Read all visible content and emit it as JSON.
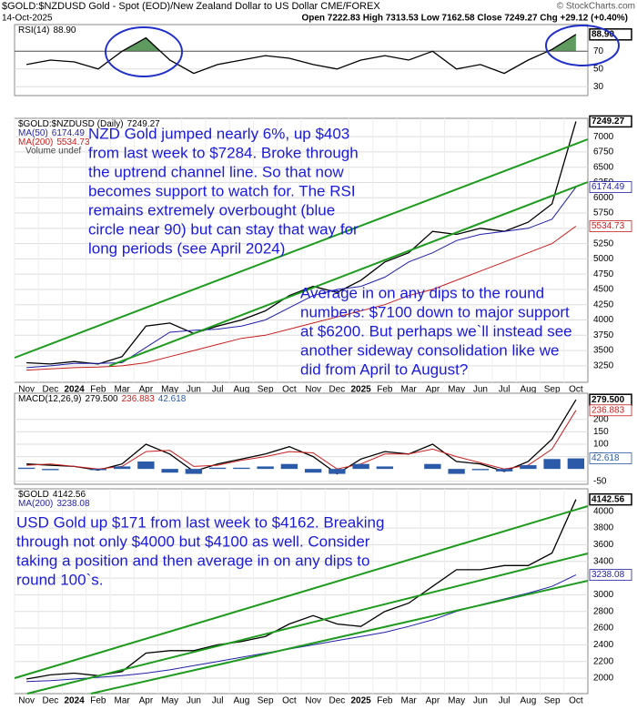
{
  "header": {
    "symbol_title": "$GOLD:$NZDUSD Gold - Spot (EOD)/New Zealand Dollar to US Dollar CME/FOREX",
    "credit": "© StockCharts.com",
    "date": "14-Oct-2025",
    "quote": "Open 7222.83 High 7313.53 Low 7162.58 Close 7249.27 Chg +29.12 (+0.40%)"
  },
  "chart_data": [
    {
      "type": "line",
      "ylim": [
        20,
        100
      ],
      "yticks": [
        30,
        50,
        70
      ],
      "fill_above": 70,
      "fill_color": "#5f9a5f",
      "grid": true,
      "series": [
        {
          "name": "RSI(14)",
          "color": "#000000",
          "values": [
            55,
            60,
            58,
            50,
            70,
            85,
            60,
            45,
            55,
            60,
            65,
            62,
            55,
            50,
            60,
            65,
            60,
            70,
            50,
            55,
            45,
            60,
            72,
            88.9
          ],
          "value_labels": [
            null,
            null,
            null,
            null,
            null,
            null,
            null,
            null,
            null,
            null,
            null,
            null,
            null,
            null,
            null,
            null,
            null,
            null,
            null,
            null,
            null,
            null,
            null,
            "88.90"
          ]
        }
      ]
    },
    {
      "type": "line",
      "ylim": [
        2980,
        7300
      ],
      "yticks": [
        3250,
        3500,
        3750,
        4000,
        4250,
        4500,
        4750,
        5000,
        5250,
        5500,
        5750,
        6000,
        6250,
        6500,
        6750,
        7000
      ],
      "grid": true,
      "categories": [
        "Nov",
        "Dec",
        "2024",
        "Feb",
        "Mar",
        "Apr",
        "May",
        "Jun",
        "Jul",
        "Aug",
        "Sep",
        "Oct",
        "Nov",
        "Dec",
        "2025",
        "Feb",
        "Mar",
        "Apr",
        "May",
        "Jun",
        "Jul",
        "Aug",
        "Sep",
        "Oct"
      ],
      "series": [
        {
          "name": "$GOLD:$NZDUSD (Daily)",
          "color": "#000000",
          "values": [
            3300,
            3280,
            3320,
            3280,
            3400,
            3900,
            3950,
            3780,
            3900,
            4000,
            4150,
            4400,
            4550,
            4450,
            4650,
            4950,
            5100,
            5450,
            5400,
            5500,
            5450,
            5600,
            5900,
            7249.27
          ]
        },
        {
          "name": "MA(50)",
          "color": "#1f1fa8",
          "values": [
            3220,
            3250,
            3290,
            3290,
            3300,
            3550,
            3800,
            3830,
            3850,
            3900,
            4000,
            4200,
            4400,
            4500,
            4550,
            4700,
            4950,
            5100,
            5300,
            5400,
            5450,
            5500,
            5650,
            6174.49
          ]
        },
        {
          "name": "MA(200)",
          "color": "#c81e1e",
          "values": [
            3180,
            3200,
            3220,
            3230,
            3250,
            3300,
            3400,
            3500,
            3600,
            3700,
            3750,
            3850,
            3950,
            4050,
            4150,
            4250,
            4400,
            4500,
            4650,
            4800,
            4950,
            5100,
            5250,
            5534.73
          ]
        }
      ],
      "legend_notes": [
        "Volume undef"
      ],
      "annotations": [
        {
          "lines": [
            "NZD Gold jumped nearly 6%, up $403",
            "from last week to $7284. Broke through",
            "the uptrend channel line. So that now",
            "becomes support to watch for. The RSI",
            "remains extremely overbought (blue",
            "circle near 90) but can stay that way for",
            "long periods (see April 2024)"
          ]
        },
        {
          "lines": [
            "Average in on any dips to the round",
            "numbers: $7100 down to major support",
            "at $6200. But perhaps we`ll instead see",
            "another sideway consolidation like we",
            "did from April to August?"
          ]
        }
      ]
    },
    {
      "type": "line",
      "ylim": [
        -62,
        306
      ],
      "yticks": [
        -50,
        50,
        100,
        150,
        200
      ],
      "grid": true,
      "legend_inline": true,
      "series": [
        {
          "name": "MACD(12,26,9)",
          "color": "#000000",
          "values": [
            20,
            15,
            10,
            -5,
            20,
            100,
            60,
            -10,
            20,
            40,
            60,
            90,
            50,
            -20,
            40,
            70,
            60,
            100,
            30,
            20,
            -10,
            30,
            120,
            279.5
          ],
          "value_labels": [
            null,
            null,
            null,
            null,
            null,
            null,
            null,
            null,
            null,
            null,
            null,
            null,
            null,
            null,
            null,
            null,
            null,
            null,
            null,
            null,
            null,
            null,
            null,
            "279.500"
          ]
        },
        {
          "color": "#c81e1e",
          "values": [
            15,
            20,
            10,
            0,
            10,
            70,
            75,
            10,
            15,
            35,
            50,
            70,
            65,
            0,
            20,
            60,
            60,
            80,
            50,
            25,
            0,
            15,
            80,
            236.883
          ]
        },
        {
          "color": "#2a5aa8",
          "kind": "histogram",
          "values": [
            5,
            -5,
            0,
            -5,
            10,
            30,
            -15,
            -20,
            5,
            5,
            10,
            20,
            -15,
            -20,
            20,
            10,
            0,
            20,
            -20,
            -5,
            -10,
            15,
            40,
            42.618
          ]
        }
      ]
    },
    {
      "type": "line",
      "ylim": [
        1815,
        4270
      ],
      "yticks": [
        2000,
        2200,
        2400,
        2600,
        2800,
        3000,
        3200,
        3400,
        3600,
        3800,
        4000
      ],
      "grid": true,
      "categories": [
        "Nov",
        "Dec",
        "2024",
        "Feb",
        "Mar",
        "Apr",
        "May",
        "Jun",
        "Jul",
        "Aug",
        "Sep",
        "Oct",
        "Nov",
        "Dec",
        "2025",
        "Feb",
        "Mar",
        "Apr",
        "May",
        "Jun",
        "Jul",
        "Aug",
        "Sep",
        "Oct"
      ],
      "series": [
        {
          "name": "$GOLD",
          "color": "#000000",
          "values": [
            1990,
            2040,
            2060,
            2030,
            2080,
            2300,
            2330,
            2330,
            2400,
            2440,
            2500,
            2650,
            2750,
            2650,
            2620,
            2800,
            2900,
            3100,
            3300,
            3300,
            3350,
            3350,
            3500,
            4142.56
          ]
        },
        {
          "name": "MA(200)",
          "color": "#1f1fa8",
          "values": [
            1960,
            1970,
            1990,
            2010,
            2030,
            2060,
            2100,
            2150,
            2200,
            2250,
            2300,
            2350,
            2400,
            2450,
            2500,
            2550,
            2620,
            2700,
            2800,
            2880,
            2950,
            3020,
            3100,
            3238.08
          ]
        }
      ],
      "annotations": [
        {
          "lines": [
            "USD Gold up $171 from last week to $4162. Breaking",
            "through not only $4000 but $4100 as well. Consider",
            "taking a position and then average in on any dips to",
            "round 100`s."
          ]
        }
      ]
    }
  ]
}
